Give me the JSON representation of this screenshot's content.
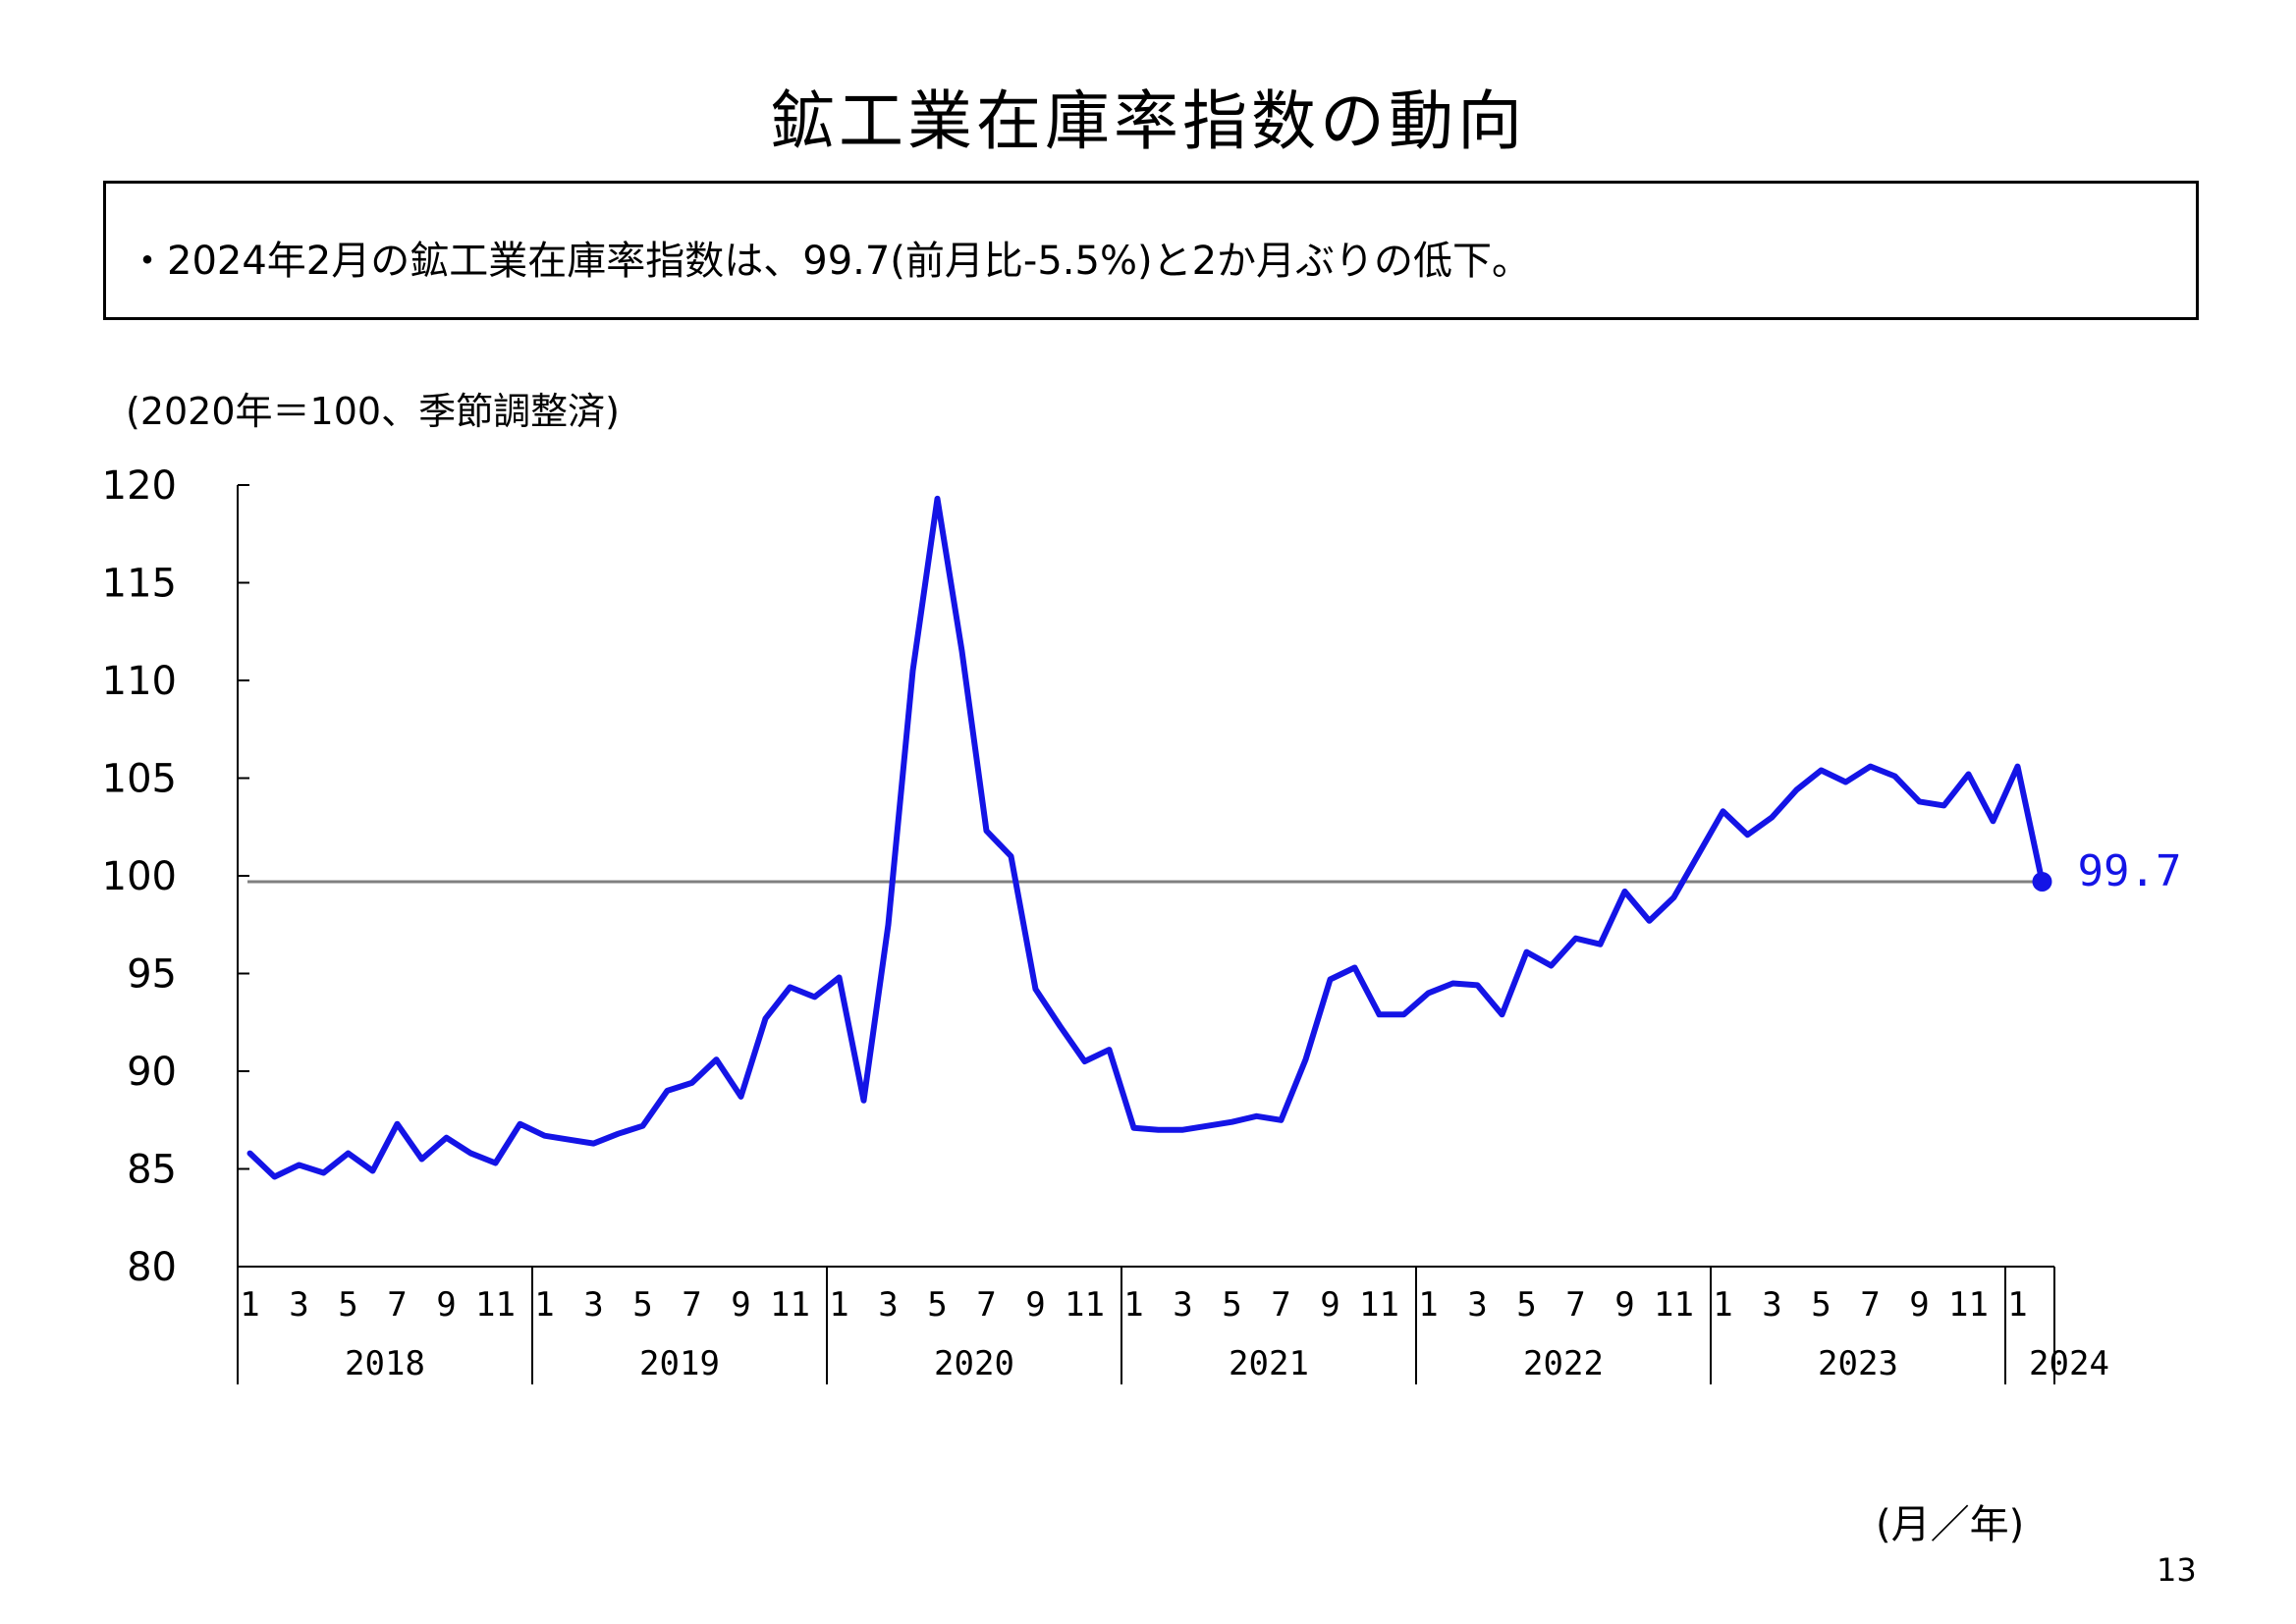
{
  "title": "鉱工業在庫率指数の動向",
  "summary": "・2024年2月の鉱工業在庫率指数は、99.7(前月比-5.5%)と2か月ぶりの低下。",
  "unit_note": "(2020年＝100、季節調整済)",
  "axis_unit": "(月／年)",
  "page_number": "13",
  "chart_data": {
    "type": "line",
    "ylim": [
      80,
      120
    ],
    "yticks": [
      80,
      85,
      90,
      95,
      100,
      105,
      110,
      115,
      120
    ],
    "yticklabels": [
      "80",
      "85",
      "90",
      "95",
      "100",
      "105",
      "110",
      "115",
      "120"
    ],
    "month_ticks": [
      "1",
      "3",
      "5",
      "7",
      "9",
      "11"
    ],
    "years": [
      "2018",
      "2019",
      "2020",
      "2021",
      "2022",
      "2023",
      "2024"
    ],
    "last_label": "99.7",
    "reference_line": 99.7,
    "colors": {
      "series": "#1414e6",
      "reference": "#808080",
      "axis": "#000000"
    },
    "series": [
      {
        "values": [
          85.8,
          84.6,
          85.2,
          84.8,
          85.8,
          84.9,
          87.3,
          85.5,
          86.6,
          85.8,
          85.3,
          87.3,
          86.7,
          86.5,
          86.3,
          86.8,
          87.2,
          89.0,
          89.4,
          90.6,
          88.7,
          92.7,
          94.3,
          93.8,
          94.8,
          88.5,
          97.5,
          110.5,
          119.3,
          111.5,
          102.3,
          101.0,
          94.2,
          92.3,
          90.5,
          91.1,
          87.1,
          87.0,
          87.0,
          87.2,
          87.4,
          87.7,
          87.5,
          90.6,
          94.7,
          95.3,
          92.9,
          92.9,
          94.0,
          94.5,
          94.4,
          92.9,
          96.1,
          95.4,
          96.8,
          96.5,
          99.2,
          97.7,
          98.9,
          101.1,
          103.3,
          102.1,
          103.0,
          104.4,
          105.4,
          104.8,
          105.6,
          105.1,
          103.8,
          103.6,
          105.2,
          102.8,
          105.6,
          99.7
        ]
      }
    ]
  }
}
